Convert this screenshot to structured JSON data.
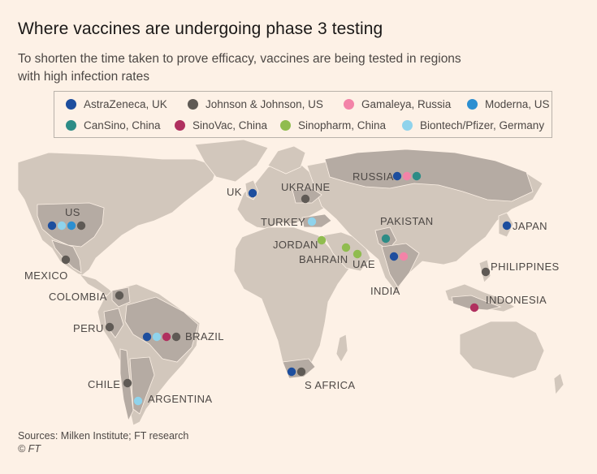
{
  "title": "Where vaccines are undergoing phase 3 testing",
  "subtitle": "To shorten the time taken to prove efficacy, vaccines are being tested in regions with high infection rates",
  "legend": [
    {
      "key": "az",
      "label": "AstraZeneca, UK",
      "color": "#1d4e9e"
    },
    {
      "key": "jj",
      "label": "Johnson & Johnson, US",
      "color": "#5f5a55"
    },
    {
      "key": "gam",
      "label": "Gamaleya, Russia",
      "color": "#f383a8"
    },
    {
      "key": "mod",
      "label": "Moderna, US",
      "color": "#2c8fd1"
    },
    {
      "key": "cs",
      "label": "CanSino, China",
      "color": "#2d8c86"
    },
    {
      "key": "sv",
      "label": "SinoVac, China",
      "color": "#b0305f"
    },
    {
      "key": "sp",
      "label": "Sinopharm, China",
      "color": "#90bc4f"
    },
    {
      "key": "bp",
      "label": "Biontech/Pfizer, Germany",
      "color": "#8fd3ec"
    }
  ],
  "colors": {
    "background": "#fdf1e6",
    "land": "#d2c7bc",
    "highlight_land": "#b5aba3"
  },
  "trial_countries": [
    {
      "name": "US",
      "vaccines": [
        "az",
        "bp",
        "mod",
        "jj"
      ]
    },
    {
      "name": "UK",
      "vaccines": [
        "az"
      ]
    },
    {
      "name": "RUSSIA",
      "vaccines": [
        "az",
        "gam",
        "cs"
      ]
    },
    {
      "name": "UKRAINE",
      "vaccines": [
        "jj"
      ]
    },
    {
      "name": "TURKEY",
      "vaccines": [
        "bp"
      ]
    },
    {
      "name": "JAPAN",
      "vaccines": [
        "az"
      ]
    },
    {
      "name": "PAKISTAN",
      "vaccines": [
        "cs"
      ]
    },
    {
      "name": "JORDAN",
      "vaccines": [
        "sp"
      ]
    },
    {
      "name": "BAHRAIN",
      "vaccines": [
        "sp"
      ]
    },
    {
      "name": "UAE",
      "vaccines": [
        "sp"
      ]
    },
    {
      "name": "INDIA",
      "vaccines": [
        "az",
        "gam"
      ]
    },
    {
      "name": "PHILIPPINES",
      "vaccines": [
        "jj"
      ]
    },
    {
      "name": "INDONESIA",
      "vaccines": [
        "sv"
      ]
    },
    {
      "name": "MEXICO",
      "vaccines": [
        "jj"
      ]
    },
    {
      "name": "COLOMBIA",
      "vaccines": [
        "jj"
      ]
    },
    {
      "name": "PERU",
      "vaccines": [
        "jj"
      ]
    },
    {
      "name": "BRAZIL",
      "vaccines": [
        "az",
        "bp",
        "sv",
        "jj"
      ]
    },
    {
      "name": "CHILE",
      "vaccines": [
        "jj"
      ]
    },
    {
      "name": "ARGENTINA",
      "vaccines": [
        "bp"
      ]
    },
    {
      "name": "S AFRICA",
      "vaccines": [
        "az",
        "jj"
      ]
    }
  ],
  "source": "Sources: Milken Institute; FT research",
  "copyright": "© FT"
}
